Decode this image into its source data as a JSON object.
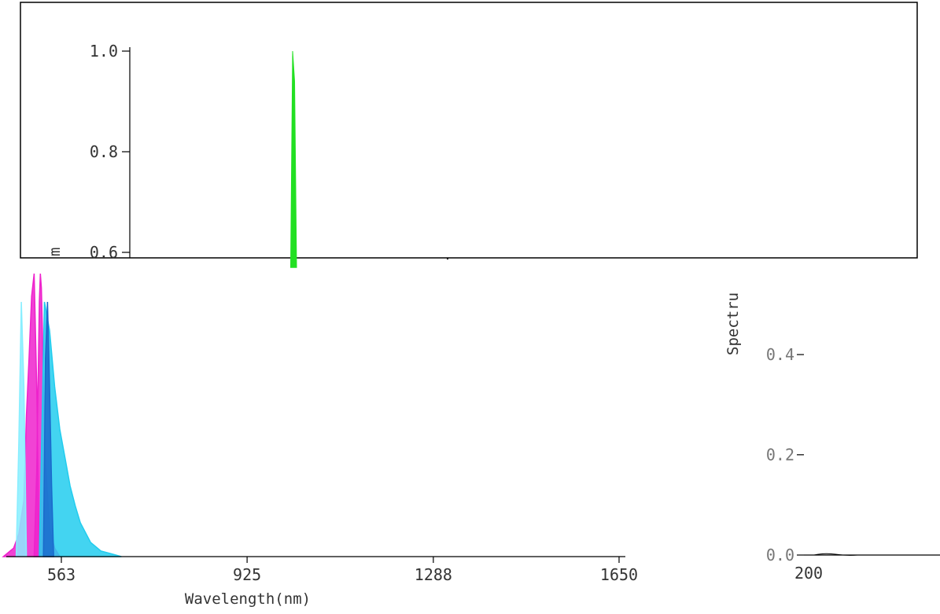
{
  "colors": {
    "green": "#22e022",
    "magenta": "#ee22cc",
    "cyan": "#22ccee",
    "cyan_light": "#88eeff",
    "blue": "#1a6acc",
    "axis": "#000000"
  },
  "chart_data": [
    {
      "panel": "upper",
      "type": "area",
      "y_ticks": [
        "1.0",
        "0.8",
        "0.6"
      ],
      "ylabel_fragment": "m",
      "series": [
        {
          "color": "green",
          "x": [
            995,
            1000,
            1005,
            1010
          ],
          "y": [
            0.57,
            1.0,
            0.94,
            0.57
          ]
        }
      ]
    },
    {
      "panel": "lower-left",
      "type": "area",
      "x_ticks": [
        "563",
        "925",
        "1288",
        "1650"
      ],
      "x_tick_values": [
        563,
        925,
        1288,
        1650
      ],
      "xlabel": "Wavelength(nm)",
      "series": [
        {
          "color": "magenta",
          "x": [
            450,
            470,
            480,
            490,
            495,
            500,
            505,
            510,
            515,
            520
          ],
          "y": [
            0.0,
            0.03,
            0.08,
            0.2,
            0.5,
            0.7,
            0.92,
            1.0,
            0.6,
            0.0
          ]
        },
        {
          "color": "magenta",
          "x": [
            510,
            515,
            520,
            522,
            524,
            526,
            528,
            530,
            540,
            550,
            560
          ],
          "y": [
            0.0,
            0.3,
            0.9,
            1.0,
            0.95,
            0.8,
            0.6,
            0.4,
            0.1,
            0.03,
            0.0
          ]
        },
        {
          "color": "cyan",
          "x": [
            520,
            530,
            540,
            550,
            560,
            570,
            580,
            590,
            600,
            620,
            640,
            660,
            680
          ],
          "y": [
            0.0,
            0.9,
            0.8,
            0.6,
            0.45,
            0.35,
            0.25,
            0.18,
            0.12,
            0.05,
            0.02,
            0.01,
            0.0
          ]
        },
        {
          "color": "cyan_light",
          "x": [
            475,
            480,
            485,
            490,
            495
          ],
          "y": [
            0.0,
            0.4,
            0.9,
            0.6,
            0.0
          ]
        },
        {
          "color": "blue",
          "x": [
            528,
            532,
            536,
            540,
            544,
            548
          ],
          "y": [
            0.0,
            0.7,
            0.9,
            0.6,
            0.25,
            0.0
          ]
        }
      ]
    },
    {
      "panel": "lower-right",
      "type": "line",
      "ylabel_fragment": "Spectru",
      "y_ticks": [
        "0.4",
        "0.2",
        "0.0"
      ],
      "x_ticks": [
        "200"
      ]
    }
  ]
}
